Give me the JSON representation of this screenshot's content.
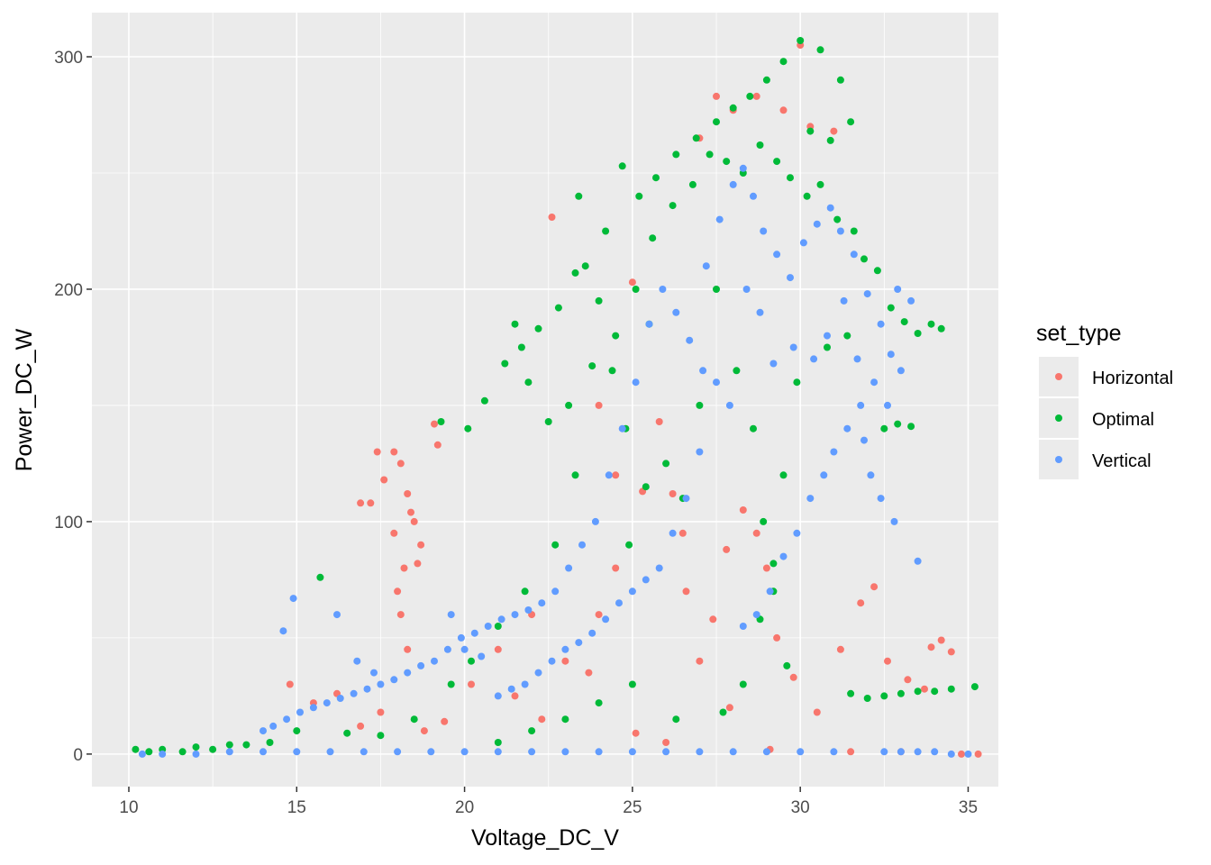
{
  "chart_data": {
    "type": "scatter",
    "xlabel": "Voltage_DC_V",
    "ylabel": "Power_DC_W",
    "xlim": [
      8.9,
      35.9
    ],
    "ylim": [
      -14,
      319
    ],
    "x_ticks": [
      10,
      15,
      20,
      25,
      30,
      35
    ],
    "y_ticks": [
      0,
      100,
      200,
      300
    ],
    "x_tick_labels": [
      "10",
      "15",
      "20",
      "25",
      "30",
      "35"
    ],
    "y_tick_labels": [
      "0",
      "100",
      "200",
      "300"
    ],
    "grid": true,
    "panel_background": "#ebebeb",
    "legend": {
      "title": "set_type",
      "position": "right",
      "entries": [
        "Horizontal",
        "Optimal",
        "Vertical"
      ]
    },
    "series": [
      {
        "name": "Horizontal",
        "color": "#F8766D",
        "points": [
          [
            17.2,
            108
          ],
          [
            17.6,
            118
          ],
          [
            17.9,
            130
          ],
          [
            18.1,
            125
          ],
          [
            18.3,
            112
          ],
          [
            18.5,
            100
          ],
          [
            18.7,
            90
          ],
          [
            18.2,
            80
          ],
          [
            18.0,
            70
          ],
          [
            17.9,
            95
          ],
          [
            18.4,
            104
          ],
          [
            18.6,
            82
          ],
          [
            18.1,
            60
          ],
          [
            18.3,
            45
          ],
          [
            19.1,
            142
          ],
          [
            19.2,
            133
          ],
          [
            17.4,
            130
          ],
          [
            16.9,
            108
          ],
          [
            22.6,
            231
          ],
          [
            14.8,
            30
          ],
          [
            15.5,
            22
          ],
          [
            16.2,
            26
          ],
          [
            16.9,
            12
          ],
          [
            17.5,
            18
          ],
          [
            18.8,
            10
          ],
          [
            19.4,
            14
          ],
          [
            21.5,
            25
          ],
          [
            22.3,
            15
          ],
          [
            23.0,
            40
          ],
          [
            23.7,
            35
          ],
          [
            24.0,
            60
          ],
          [
            24.5,
            80
          ],
          [
            25.3,
            113
          ],
          [
            25.8,
            143
          ],
          [
            26.2,
            112
          ],
          [
            26.6,
            70
          ],
          [
            27.0,
            40
          ],
          [
            27.4,
            58
          ],
          [
            27.9,
            20
          ],
          [
            28.3,
            105
          ],
          [
            28.7,
            95
          ],
          [
            29.0,
            80
          ],
          [
            29.3,
            50
          ],
          [
            29.8,
            33
          ],
          [
            30.5,
            18
          ],
          [
            31.2,
            45
          ],
          [
            31.8,
            65
          ],
          [
            32.2,
            72
          ],
          [
            32.6,
            40
          ],
          [
            33.2,
            32
          ],
          [
            33.7,
            28
          ],
          [
            34.2,
            49
          ],
          [
            33.9,
            46
          ],
          [
            34.5,
            44
          ],
          [
            27.5,
            283
          ],
          [
            28.0,
            277
          ],
          [
            28.7,
            283
          ],
          [
            29.5,
            277
          ],
          [
            30.0,
            305
          ],
          [
            30.3,
            270
          ],
          [
            31.0,
            268
          ],
          [
            27.0,
            265
          ],
          [
            25.0,
            203
          ],
          [
            24.0,
            150
          ],
          [
            24.5,
            120
          ],
          [
            26.5,
            95
          ],
          [
            27.8,
            88
          ],
          [
            22.0,
            60
          ],
          [
            21.0,
            45
          ],
          [
            20.2,
            30
          ],
          [
            29.1,
            2
          ],
          [
            31.5,
            1
          ],
          [
            33.0,
            1
          ],
          [
            35.3,
            0
          ],
          [
            34.8,
            0
          ],
          [
            26.0,
            5
          ],
          [
            25.1,
            9
          ]
        ]
      },
      {
        "name": "Optimal",
        "color": "#00BA38",
        "points": [
          [
            30.0,
            307
          ],
          [
            29.5,
            298
          ],
          [
            29.0,
            290
          ],
          [
            28.5,
            283
          ],
          [
            28.0,
            278
          ],
          [
            27.5,
            272
          ],
          [
            26.9,
            265
          ],
          [
            26.3,
            258
          ],
          [
            25.7,
            248
          ],
          [
            25.2,
            240
          ],
          [
            24.7,
            253
          ],
          [
            24.2,
            225
          ],
          [
            23.6,
            210
          ],
          [
            23.3,
            207
          ],
          [
            22.8,
            192
          ],
          [
            22.2,
            183
          ],
          [
            21.7,
            175
          ],
          [
            21.2,
            168
          ],
          [
            20.6,
            152
          ],
          [
            20.1,
            140
          ],
          [
            23.4,
            240
          ],
          [
            21.5,
            185
          ],
          [
            21.9,
            160
          ],
          [
            22.5,
            143
          ],
          [
            23.1,
            150
          ],
          [
            23.8,
            167
          ],
          [
            24.5,
            180
          ],
          [
            25.1,
            200
          ],
          [
            25.6,
            222
          ],
          [
            26.2,
            236
          ],
          [
            26.8,
            245
          ],
          [
            27.3,
            258
          ],
          [
            27.8,
            255
          ],
          [
            28.3,
            250
          ],
          [
            28.8,
            262
          ],
          [
            29.3,
            255
          ],
          [
            29.7,
            248
          ],
          [
            30.2,
            240
          ],
          [
            30.6,
            245
          ],
          [
            31.1,
            230
          ],
          [
            31.6,
            225
          ],
          [
            31.9,
            213
          ],
          [
            32.3,
            208
          ],
          [
            32.7,
            192
          ],
          [
            33.1,
            186
          ],
          [
            33.5,
            181
          ],
          [
            33.9,
            185
          ],
          [
            34.2,
            183
          ],
          [
            32.9,
            142
          ],
          [
            33.3,
            141
          ],
          [
            32.5,
            140
          ],
          [
            31.4,
            180
          ],
          [
            30.8,
            175
          ],
          [
            30.3,
            268
          ],
          [
            30.9,
            264
          ],
          [
            31.2,
            290
          ],
          [
            31.5,
            272
          ],
          [
            30.6,
            303
          ],
          [
            24.0,
            195
          ],
          [
            24.4,
            165
          ],
          [
            24.8,
            140
          ],
          [
            25.5,
            185
          ],
          [
            26.0,
            125
          ],
          [
            26.5,
            110
          ],
          [
            27.0,
            150
          ],
          [
            27.5,
            200
          ],
          [
            28.1,
            165
          ],
          [
            28.6,
            140
          ],
          [
            28.9,
            100
          ],
          [
            29.2,
            70
          ],
          [
            29.5,
            120
          ],
          [
            29.9,
            160
          ],
          [
            25.4,
            115
          ],
          [
            24.9,
            90
          ],
          [
            23.3,
            120
          ],
          [
            22.7,
            90
          ],
          [
            21.8,
            70
          ],
          [
            21.0,
            55
          ],
          [
            20.2,
            40
          ],
          [
            19.6,
            30
          ],
          [
            18.5,
            15
          ],
          [
            17.5,
            8
          ],
          [
            16.5,
            9
          ],
          [
            15.7,
            76
          ],
          [
            15.0,
            10
          ],
          [
            14.2,
            5
          ],
          [
            13.0,
            4
          ],
          [
            12.0,
            3
          ],
          [
            11.0,
            2
          ],
          [
            10.2,
            2
          ],
          [
            10.6,
            1
          ],
          [
            11.6,
            1
          ],
          [
            12.5,
            2
          ],
          [
            13.5,
            4
          ],
          [
            31.5,
            26
          ],
          [
            32.0,
            24
          ],
          [
            32.5,
            25
          ],
          [
            33.0,
            26
          ],
          [
            33.5,
            27
          ],
          [
            34.0,
            27
          ],
          [
            34.5,
            28
          ],
          [
            35.2,
            29
          ],
          [
            28.3,
            30
          ],
          [
            28.8,
            58
          ],
          [
            29.2,
            82
          ],
          [
            29.6,
            38
          ],
          [
            27.7,
            18
          ],
          [
            26.3,
            15
          ],
          [
            25.0,
            30
          ],
          [
            24.0,
            22
          ],
          [
            23.0,
            15
          ],
          [
            22.0,
            10
          ],
          [
            21.0,
            5
          ],
          [
            19.3,
            143
          ]
        ]
      },
      {
        "name": "Vertical",
        "color": "#619CFF",
        "points": [
          [
            27.2,
            210
          ],
          [
            27.6,
            230
          ],
          [
            28.0,
            245
          ],
          [
            28.3,
            252
          ],
          [
            28.6,
            240
          ],
          [
            28.9,
            225
          ],
          [
            29.3,
            215
          ],
          [
            29.7,
            205
          ],
          [
            30.1,
            220
          ],
          [
            30.5,
            228
          ],
          [
            30.9,
            235
          ],
          [
            31.2,
            225
          ],
          [
            31.6,
            215
          ],
          [
            32.0,
            198
          ],
          [
            32.4,
            185
          ],
          [
            32.7,
            172
          ],
          [
            33.0,
            165
          ],
          [
            32.2,
            160
          ],
          [
            31.8,
            150
          ],
          [
            31.4,
            140
          ],
          [
            31.0,
            130
          ],
          [
            30.7,
            120
          ],
          [
            30.3,
            110
          ],
          [
            29.9,
            95
          ],
          [
            29.5,
            85
          ],
          [
            29.1,
            70
          ],
          [
            28.7,
            60
          ],
          [
            28.3,
            55
          ],
          [
            27.9,
            150
          ],
          [
            27.5,
            160
          ],
          [
            27.1,
            165
          ],
          [
            26.7,
            178
          ],
          [
            26.3,
            190
          ],
          [
            25.9,
            200
          ],
          [
            25.5,
            185
          ],
          [
            25.1,
            160
          ],
          [
            24.7,
            140
          ],
          [
            24.3,
            120
          ],
          [
            23.9,
            100
          ],
          [
            23.5,
            90
          ],
          [
            23.1,
            80
          ],
          [
            22.7,
            70
          ],
          [
            22.3,
            65
          ],
          [
            21.9,
            62
          ],
          [
            21.5,
            60
          ],
          [
            21.1,
            58
          ],
          [
            20.7,
            55
          ],
          [
            20.3,
            52
          ],
          [
            19.9,
            50
          ],
          [
            19.5,
            45
          ],
          [
            19.1,
            40
          ],
          [
            18.7,
            38
          ],
          [
            18.3,
            35
          ],
          [
            17.9,
            32
          ],
          [
            17.5,
            30
          ],
          [
            17.1,
            28
          ],
          [
            16.7,
            26
          ],
          [
            16.3,
            24
          ],
          [
            15.9,
            22
          ],
          [
            15.5,
            20
          ],
          [
            15.1,
            18
          ],
          [
            14.7,
            15
          ],
          [
            14.3,
            12
          ],
          [
            14.0,
            10
          ],
          [
            14.9,
            67
          ],
          [
            14.6,
            53
          ],
          [
            16.2,
            60
          ],
          [
            16.8,
            40
          ],
          [
            17.3,
            35
          ],
          [
            19.6,
            60
          ],
          [
            20.0,
            45
          ],
          [
            20.5,
            42
          ],
          [
            33.5,
            83
          ],
          [
            32.8,
            100
          ],
          [
            32.4,
            110
          ],
          [
            32.1,
            120
          ],
          [
            31.9,
            135
          ],
          [
            32.6,
            150
          ],
          [
            32.9,
            200
          ],
          [
            33.3,
            195
          ],
          [
            31.7,
            170
          ],
          [
            31.3,
            195
          ],
          [
            30.8,
            180
          ],
          [
            30.4,
            170
          ],
          [
            29.8,
            175
          ],
          [
            29.2,
            168
          ],
          [
            28.8,
            190
          ],
          [
            28.4,
            200
          ],
          [
            27.0,
            130
          ],
          [
            26.6,
            110
          ],
          [
            26.2,
            95
          ],
          [
            25.8,
            80
          ],
          [
            25.4,
            75
          ],
          [
            25.0,
            70
          ],
          [
            24.6,
            65
          ],
          [
            24.2,
            58
          ],
          [
            23.8,
            52
          ],
          [
            23.4,
            48
          ],
          [
            23.0,
            45
          ],
          [
            22.6,
            40
          ],
          [
            22.2,
            35
          ],
          [
            21.8,
            30
          ],
          [
            21.4,
            28
          ],
          [
            21.0,
            25
          ],
          [
            32.5,
            1
          ],
          [
            33.0,
            1
          ],
          [
            33.5,
            1
          ],
          [
            34.0,
            1
          ],
          [
            34.5,
            0
          ],
          [
            35.0,
            0
          ],
          [
            31.0,
            1
          ],
          [
            30.0,
            1
          ],
          [
            29.0,
            1
          ],
          [
            28.0,
            1
          ],
          [
            27.0,
            1
          ],
          [
            26.0,
            1
          ],
          [
            25.0,
            1
          ],
          [
            24.0,
            1
          ],
          [
            23.0,
            1
          ],
          [
            22.0,
            1
          ],
          [
            21.0,
            1
          ],
          [
            20.0,
            1
          ],
          [
            19.0,
            1
          ],
          [
            18.0,
            1
          ],
          [
            17.0,
            1
          ],
          [
            16.0,
            1
          ],
          [
            15.0,
            1
          ],
          [
            14.0,
            1
          ],
          [
            13.0,
            1
          ],
          [
            12.0,
            0
          ],
          [
            11.0,
            0
          ],
          [
            10.4,
            0
          ]
        ]
      }
    ]
  }
}
